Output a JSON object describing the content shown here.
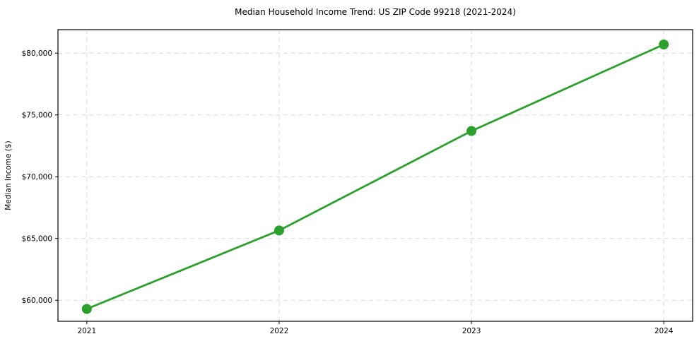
{
  "chart_data": {
    "type": "line",
    "title": "Median Household Income Trend: US ZIP Code 99218 (2021-2024)",
    "xlabel": "",
    "ylabel": "Median Income ($)",
    "x": [
      2021,
      2022,
      2023,
      2024
    ],
    "series": [
      {
        "name": "Median Household Income",
        "values": [
          59300,
          65650,
          73700,
          80700
        ]
      }
    ],
    "x_tick_labels": [
      "2021",
      "2022",
      "2023",
      "2024"
    ],
    "y_ticks": [
      60000,
      65000,
      70000,
      75000,
      80000
    ],
    "y_tick_labels": [
      "$60,000",
      "$65,000",
      "$70,000",
      "$75,000",
      "$80,000"
    ],
    "xlim": [
      2020.85,
      2024.15
    ],
    "ylim": [
      58300,
      81900
    ],
    "grid": true,
    "grid_style": "dashed",
    "legend_position": "none",
    "colors": {
      "line": "#2ca02c",
      "marker": "#2ca02c",
      "grid": "#d9d9d9",
      "spine": "#000000",
      "text": "#000000",
      "background": "#ffffff"
    },
    "marker": "circle",
    "marker_radius": 7,
    "line_width": 2.8
  }
}
